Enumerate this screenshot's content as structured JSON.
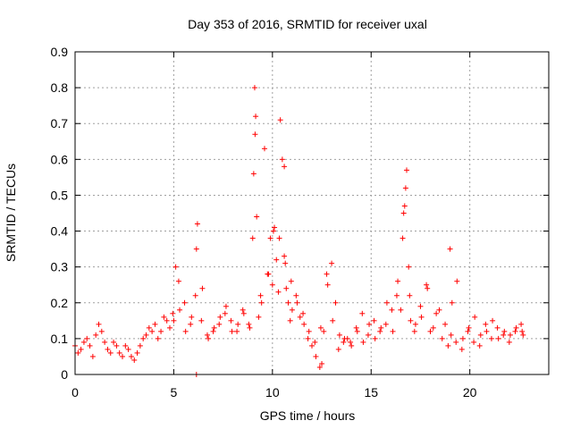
{
  "chart_data": {
    "type": "scatter",
    "title": "Day 353 of 2016, SRMTID for receiver uxal",
    "xlabel": "GPS time / hours",
    "ylabel": "SRMTID / TECUs",
    "xlim": [
      0,
      24
    ],
    "ylim": [
      0,
      0.9
    ],
    "xticks": [
      0,
      5,
      10,
      15,
      20
    ],
    "xtick_labels": [
      "0",
      "5",
      "10",
      "15",
      "20"
    ],
    "yticks": [
      0,
      0.1,
      0.2,
      0.3,
      0.4,
      0.5,
      0.6,
      0.7,
      0.8,
      0.9
    ],
    "ytick_labels": [
      "0",
      "0.1",
      "0.2",
      "0.3",
      "0.4",
      "0.5",
      "0.6",
      "0.7",
      "0.8",
      "0.9"
    ],
    "grid": true,
    "marker": "+",
    "marker_color": "#ff0000",
    "series": [
      {
        "name": "SRMTID",
        "x": [
          0.0,
          0.3,
          0.6,
          0.9,
          1.2,
          1.5,
          1.8,
          2.1,
          2.4,
          2.7,
          3.0,
          3.3,
          3.6,
          3.9,
          4.2,
          4.5,
          4.8,
          5.0,
          5.1,
          5.3,
          5.6,
          5.9,
          6.1,
          6.2,
          6.4,
          6.7,
          7.0,
          7.3,
          7.6,
          7.9,
          8.2,
          8.5,
          8.8,
          9.0,
          9.05,
          9.1,
          9.15,
          9.2,
          9.3,
          9.4,
          9.6,
          9.8,
          9.9,
          10.0,
          10.1,
          10.2,
          10.3,
          10.4,
          10.5,
          10.6,
          10.7,
          10.8,
          10.9,
          11.0,
          11.2,
          11.4,
          11.6,
          11.8,
          12.0,
          12.2,
          12.4,
          12.6,
          12.8,
          13.0,
          13.2,
          13.4,
          13.6,
          13.8,
          14.0,
          14.3,
          14.6,
          14.9,
          15.2,
          15.5,
          15.8,
          16.1,
          16.3,
          16.5,
          16.6,
          16.7,
          16.8,
          16.9,
          17.0,
          17.2,
          17.5,
          17.8,
          18.0,
          18.3,
          18.6,
          18.9,
          19.0,
          19.1,
          19.3,
          19.6,
          19.9,
          20.2,
          20.5,
          20.8,
          21.1,
          21.4,
          21.7,
          22.0,
          22.3,
          22.6,
          22.7,
          0.15,
          0.45,
          0.75,
          1.05,
          1.35,
          1.65,
          1.95,
          2.25,
          2.55,
          2.85,
          3.15,
          3.45,
          3.75,
          4.05,
          4.35,
          4.65,
          4.95,
          5.25,
          5.55,
          5.85,
          6.15,
          6.45,
          6.75,
          7.05,
          7.35,
          7.65,
          7.95,
          8.25,
          8.55,
          8.85,
          9.45,
          9.75,
          10.05,
          10.35,
          10.65,
          10.95,
          11.25,
          11.55,
          11.85,
          12.15,
          12.45,
          12.75,
          13.05,
          13.35,
          13.65,
          13.95,
          14.25,
          14.55,
          14.85,
          15.15,
          15.45,
          15.75,
          16.05,
          16.35,
          16.65,
          16.95,
          17.25,
          17.55,
          17.85,
          18.15,
          18.45,
          18.75,
          19.05,
          19.35,
          19.65,
          19.95,
          20.25,
          20.55,
          20.85,
          21.15,
          21.45,
          21.75,
          22.05,
          22.35,
          22.65,
          6.15,
          9.12,
          10.6,
          16.75,
          12.5
        ],
        "y": [
          0.08,
          0.07,
          0.1,
          0.05,
          0.14,
          0.09,
          0.06,
          0.08,
          0.05,
          0.07,
          0.04,
          0.08,
          0.11,
          0.12,
          0.1,
          0.16,
          0.13,
          0.15,
          0.3,
          0.18,
          0.12,
          0.16,
          0.22,
          0.42,
          0.15,
          0.11,
          0.12,
          0.14,
          0.17,
          0.15,
          0.12,
          0.18,
          0.14,
          0.38,
          0.56,
          0.8,
          0.72,
          0.44,
          0.16,
          0.22,
          0.63,
          0.28,
          0.38,
          0.25,
          0.41,
          0.32,
          0.23,
          0.71,
          0.6,
          0.33,
          0.24,
          0.2,
          0.15,
          0.18,
          0.22,
          0.16,
          0.14,
          0.1,
          0.08,
          0.05,
          0.02,
          0.12,
          0.25,
          0.31,
          0.2,
          0.11,
          0.09,
          0.1,
          0.08,
          0.12,
          0.09,
          0.14,
          0.1,
          0.13,
          0.2,
          0.12,
          0.22,
          0.18,
          0.38,
          0.47,
          0.57,
          0.3,
          0.15,
          0.12,
          0.19,
          0.25,
          0.12,
          0.17,
          0.1,
          0.08,
          0.35,
          0.2,
          0.09,
          0.07,
          0.12,
          0.09,
          0.08,
          0.14,
          0.1,
          0.13,
          0.11,
          0.09,
          0.12,
          0.14,
          0.11,
          0.06,
          0.09,
          0.08,
          0.11,
          0.12,
          0.07,
          0.09,
          0.06,
          0.08,
          0.05,
          0.06,
          0.1,
          0.13,
          0.14,
          0.12,
          0.15,
          0.17,
          0.26,
          0.2,
          0.14,
          0.35,
          0.24,
          0.1,
          0.13,
          0.16,
          0.19,
          0.12,
          0.14,
          0.17,
          0.13,
          0.2,
          0.28,
          0.4,
          0.38,
          0.31,
          0.26,
          0.2,
          0.17,
          0.12,
          0.09,
          0.13,
          0.28,
          0.15,
          0.07,
          0.1,
          0.09,
          0.13,
          0.17,
          0.11,
          0.15,
          0.12,
          0.14,
          0.18,
          0.26,
          0.45,
          0.22,
          0.14,
          0.16,
          0.24,
          0.13,
          0.18,
          0.14,
          0.11,
          0.26,
          0.1,
          0.13,
          0.16,
          0.11,
          0.12,
          0.15,
          0.1,
          0.12,
          0.11,
          0.13,
          0.12,
          0.0,
          0.67,
          0.58,
          0.52,
          0.03
        ]
      }
    ]
  }
}
